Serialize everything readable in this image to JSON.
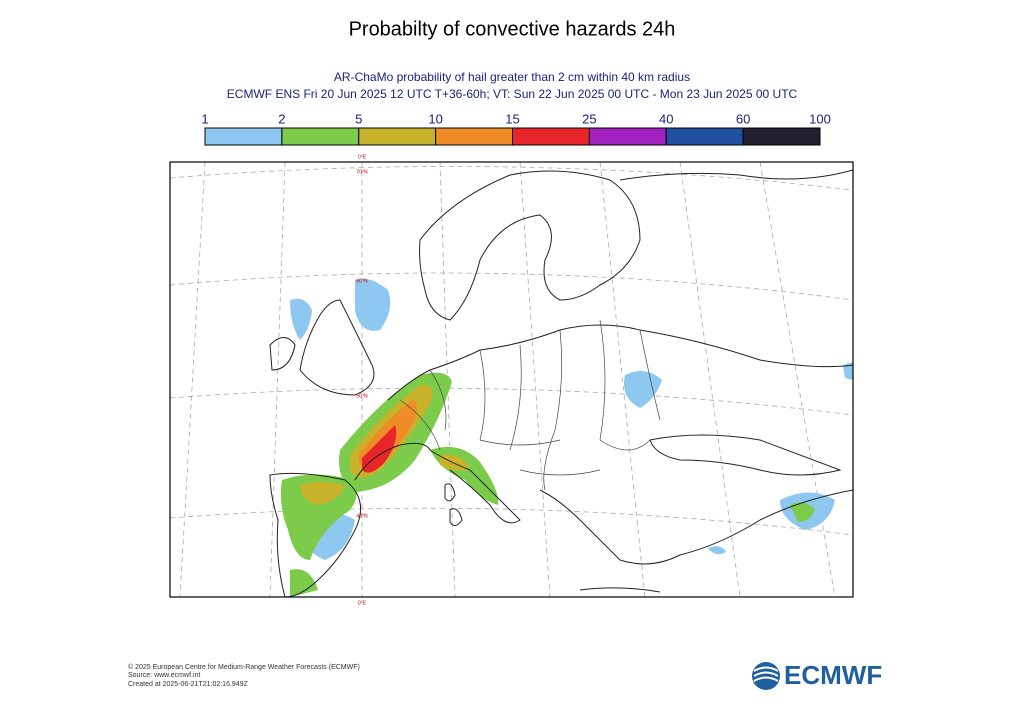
{
  "title": "Probabilty of convective hazards 24h",
  "subtitle": [
    "AR-ChaMo probability of hail greater than 2 cm within 40 km radius",
    "ECMWF ENS Fri 20 Jun 2025 12 UTC T+36-60h; VT: Sun 22 Jun 2025 00 UTC - Mon 23 Jun 2025 00 UTC"
  ],
  "legend": {
    "ticks": [
      1,
      2,
      5,
      10,
      15,
      25,
      40,
      60,
      100
    ],
    "colors": [
      "#8ec8f0",
      "#7ccb4a",
      "#c8b22a",
      "#f08c28",
      "#e8262a",
      "#a020c0",
      "#2050a0",
      "#20202e"
    ]
  },
  "map_labels": [
    "0°E",
    "70°N",
    "60°N",
    "50°N",
    "40°N",
    "0°E"
  ],
  "footer": [
    "© 2025 European Centre for Medium-Range Weather Forecasts (ECMWF)",
    "Source: www.ecmwf.int",
    "Created at 2025-06-21T21:02:16.949Z"
  ],
  "logo": "ECMWF"
}
